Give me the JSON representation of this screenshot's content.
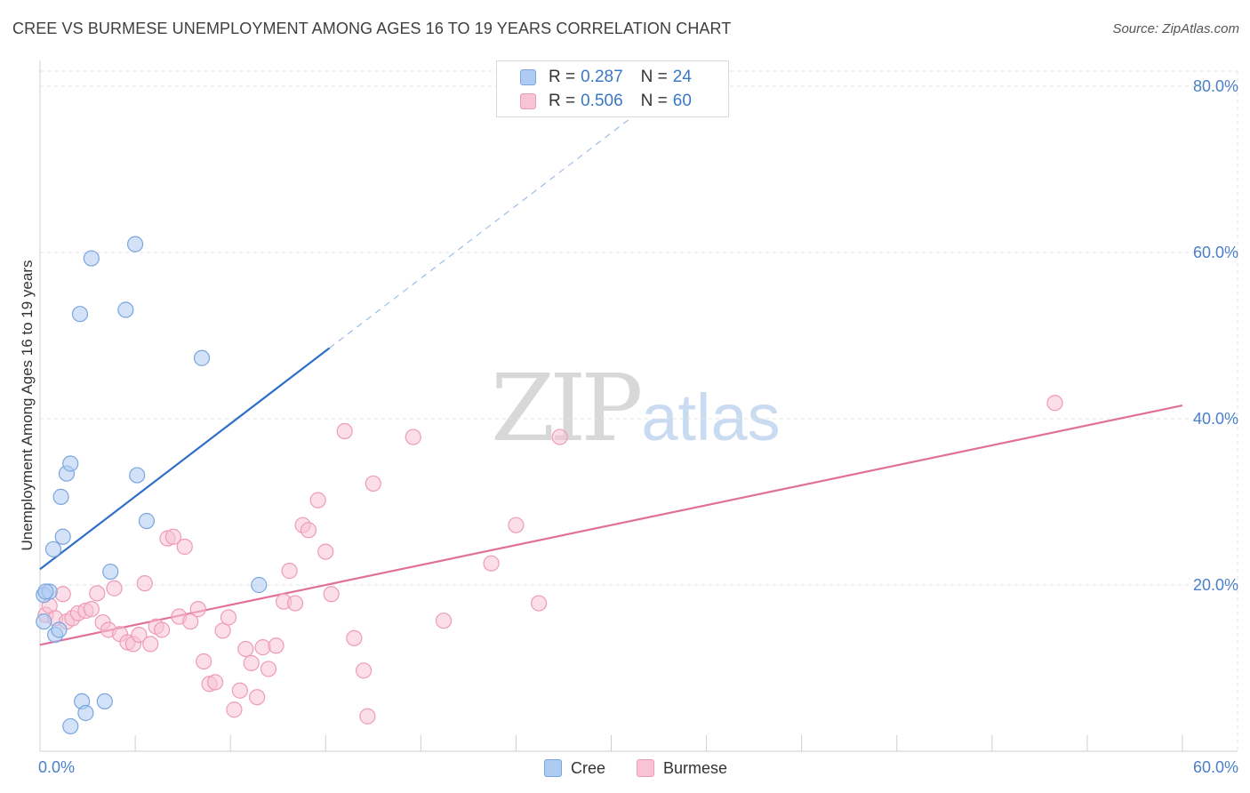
{
  "header": {
    "title": "CREE VS BURMESE UNEMPLOYMENT AMONG AGES 16 TO 19 YEARS CORRELATION CHART",
    "source": "Source: ZipAtlas.com"
  },
  "watermark": {
    "zip": "ZIP",
    "atlas": "atlas"
  },
  "legend": {
    "rows": [
      {
        "r_label": "R =",
        "r_value": "0.287",
        "n_label": "N =",
        "n_value": "24",
        "color": "#aecbf2",
        "border": "#7aa6de"
      },
      {
        "r_label": "R =",
        "r_value": "0.506",
        "n_label": "N =",
        "n_value": "60",
        "color": "#f8c3d4",
        "border": "#ee9bb7"
      }
    ]
  },
  "bottom_legend": [
    {
      "label": "Cree",
      "color": "#aecbf2",
      "border": "#7aa6de"
    },
    {
      "label": "Burmese",
      "color": "#f8c3d4",
      "border": "#ee9bb7"
    }
  ],
  "chart_data": {
    "type": "scatter",
    "title": "CREE VS BURMESE UNEMPLOYMENT AMONG AGES 16 TO 19 YEARS CORRELATION CHART",
    "xlabel": "",
    "ylabel": "Unemployment Among Ages 16 to 19 years",
    "xlim": [
      0,
      60
    ],
    "ylim": [
      0,
      80
    ],
    "x_ticks_labeled": [
      "0.0%",
      "60.0%"
    ],
    "y_ticks": [
      {
        "value": 20,
        "label": "20.0%"
      },
      {
        "value": 40,
        "label": "40.0%"
      },
      {
        "value": 60,
        "label": "60.0%"
      },
      {
        "value": 80,
        "label": "80.0%"
      }
    ],
    "grid": true,
    "series": [
      {
        "name": "Cree",
        "color": "#aecbf2",
        "edge": "#7aa6de",
        "trend_color": "#2f6fc9",
        "trend": {
          "x0": 0,
          "y0": 21.9,
          "x1": 15.2,
          "y1": 48.5,
          "dash_to_x": 31.5,
          "dash_to_y": 77
        },
        "points": [
          [
            0.2,
            15.6
          ],
          [
            0.2,
            18.8
          ],
          [
            0.5,
            19.2
          ],
          [
            0.7,
            24.3
          ],
          [
            0.8,
            14.0
          ],
          [
            1.0,
            14.6
          ],
          [
            1.1,
            30.6
          ],
          [
            1.2,
            25.8
          ],
          [
            1.4,
            33.4
          ],
          [
            1.6,
            34.6
          ],
          [
            1.6,
            3.0
          ],
          [
            2.1,
            52.6
          ],
          [
            2.2,
            6.0
          ],
          [
            2.4,
            4.6
          ],
          [
            2.7,
            59.3
          ],
          [
            3.4,
            6.0
          ],
          [
            3.7,
            21.6
          ],
          [
            4.5,
            53.1
          ],
          [
            5.0,
            61.0
          ],
          [
            5.1,
            33.2
          ],
          [
            5.6,
            27.7
          ],
          [
            8.5,
            47.3
          ],
          [
            11.5,
            20.0
          ],
          [
            0.3,
            19.2
          ]
        ]
      },
      {
        "name": "Burmese",
        "color": "#f8c3d4",
        "edge": "#ee9bb7",
        "trend_color": "#e0709a",
        "trend": {
          "x0": 0,
          "y0": 12.8,
          "x1": 60,
          "y1": 41.6
        },
        "points": [
          [
            0.3,
            16.4
          ],
          [
            0.5,
            17.5
          ],
          [
            0.8,
            16.0
          ],
          [
            1.2,
            18.9
          ],
          [
            1.4,
            15.6
          ],
          [
            1.7,
            16.0
          ],
          [
            2.0,
            16.6
          ],
          [
            2.4,
            16.9
          ],
          [
            2.7,
            17.1
          ],
          [
            3.0,
            19.0
          ],
          [
            3.3,
            15.5
          ],
          [
            3.6,
            14.6
          ],
          [
            3.9,
            19.6
          ],
          [
            4.2,
            14.1
          ],
          [
            4.6,
            13.1
          ],
          [
            4.9,
            12.9
          ],
          [
            5.2,
            14.0
          ],
          [
            5.5,
            20.2
          ],
          [
            5.8,
            12.9
          ],
          [
            6.1,
            15.0
          ],
          [
            6.4,
            14.6
          ],
          [
            6.7,
            25.6
          ],
          [
            7.0,
            25.8
          ],
          [
            7.3,
            16.2
          ],
          [
            7.6,
            24.6
          ],
          [
            7.9,
            15.6
          ],
          [
            8.3,
            17.1
          ],
          [
            8.6,
            10.8
          ],
          [
            8.9,
            8.1
          ],
          [
            9.2,
            8.3
          ],
          [
            9.6,
            14.5
          ],
          [
            9.9,
            16.1
          ],
          [
            10.2,
            5.0
          ],
          [
            10.5,
            7.3
          ],
          [
            10.8,
            12.3
          ],
          [
            11.1,
            10.6
          ],
          [
            11.4,
            6.5
          ],
          [
            11.7,
            12.5
          ],
          [
            12.0,
            9.9
          ],
          [
            12.4,
            12.7
          ],
          [
            12.8,
            18.0
          ],
          [
            13.1,
            21.7
          ],
          [
            13.4,
            17.8
          ],
          [
            13.8,
            27.2
          ],
          [
            14.1,
            26.6
          ],
          [
            14.6,
            30.2
          ],
          [
            15.0,
            24.0
          ],
          [
            15.3,
            18.9
          ],
          [
            16.0,
            38.5
          ],
          [
            16.5,
            13.6
          ],
          [
            17.0,
            9.7
          ],
          [
            17.2,
            4.2
          ],
          [
            17.5,
            32.2
          ],
          [
            19.6,
            37.8
          ],
          [
            21.2,
            15.7
          ],
          [
            23.7,
            22.6
          ],
          [
            25.0,
            27.2
          ],
          [
            26.2,
            17.8
          ],
          [
            27.3,
            37.8
          ],
          [
            53.3,
            41.9
          ]
        ]
      }
    ]
  }
}
